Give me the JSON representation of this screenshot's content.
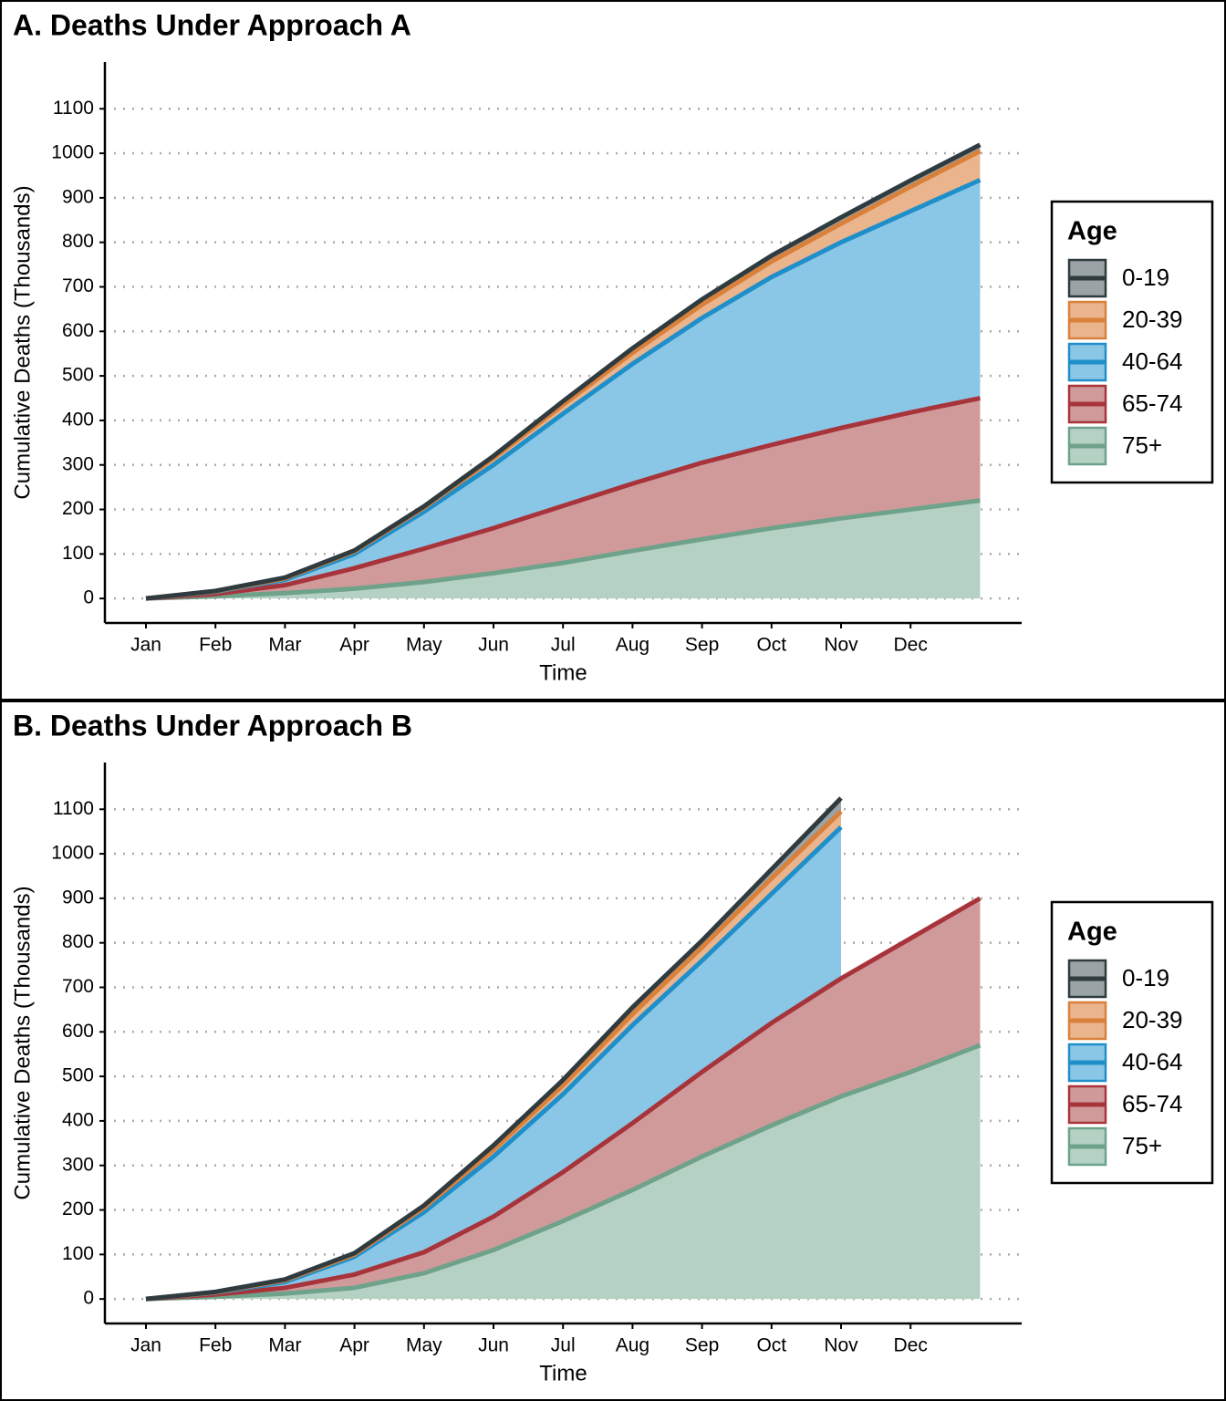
{
  "chart_data": [
    {
      "type": "area",
      "stacked": true,
      "title": "A. Deaths Under Approach A",
      "x_label": "Time",
      "y_label": "Cumulative Deaths (Thousands)",
      "legend_title": "Age",
      "legend": "right",
      "grid": true,
      "categories": [
        "Jan",
        "Feb",
        "Mar",
        "Apr",
        "May",
        "Jun",
        "Jul",
        "Aug",
        "Sep",
        "Oct",
        "Nov",
        "Dec",
        null
      ],
      "ylim": [
        -55,
        1205
      ],
      "yticks": [
        0,
        100,
        200,
        300,
        400,
        500,
        600,
        700,
        800,
        900,
        1000,
        1100
      ],
      "series": [
        {
          "name": "0-19",
          "color": "#2f3b3f",
          "fill": "#9aa3a6",
          "values": [
            0,
            1,
            2,
            2,
            3,
            5,
            8,
            10,
            12,
            13,
            14,
            14,
            14
          ]
        },
        {
          "name": "20-39",
          "color": "#d9803a",
          "fill": "#eab48d",
          "values": [
            0,
            1,
            3,
            6,
            9,
            15,
            20,
            25,
            30,
            35,
            42,
            55,
            65
          ]
        },
        {
          "name": "40-64",
          "color": "#1f8fca",
          "fill": "#8ac6e5",
          "values": [
            0,
            5,
            12,
            32,
            83,
            142,
            207,
            269,
            325,
            377,
            417,
            452,
            490
          ]
        },
        {
          "name": "65-74",
          "color": "#a8343b",
          "fill": "#d09a9b",
          "values": [
            0,
            5,
            18,
            46,
            75,
            101,
            128,
            151,
            172,
            187,
            203,
            218,
            230
          ]
        },
        {
          "name": "75+",
          "color": "#6fa28a",
          "fill": "#b5d1c3",
          "values": [
            0,
            5,
            12,
            22,
            37,
            57,
            80,
            107,
            133,
            158,
            180,
            200,
            220
          ]
        }
      ]
    },
    {
      "type": "area",
      "stacked": true,
      "title": "B. Deaths Under Approach B",
      "x_label": "Time",
      "y_label": "Cumulative Deaths (Thousands)",
      "legend_title": "Age",
      "legend": "right",
      "grid": true,
      "categories": [
        "Jan",
        "Feb",
        "Mar",
        "Apr",
        "May",
        "Jun",
        "Jul",
        "Aug",
        "Sep",
        "Oct",
        "Nov",
        "Dec",
        null
      ],
      "ylim": [
        -55,
        1205
      ],
      "yticks": [
        0,
        100,
        200,
        300,
        400,
        500,
        600,
        700,
        800,
        900,
        1000,
        1100
      ],
      "series": [
        {
          "name": "0-19",
          "color": "#2f3b3f",
          "fill": "#9aa3a6",
          "values": [
            0,
            1,
            2,
            3,
            5,
            10,
            12,
            15,
            15,
            20,
            30,
            null,
            null
          ]
        },
        {
          "name": "20-39",
          "color": "#d9803a",
          "fill": "#eab48d",
          "values": [
            0,
            1,
            4,
            5,
            10,
            15,
            20,
            25,
            30,
            35,
            35,
            null,
            null
          ]
        },
        {
          "name": "40-64",
          "color": "#1f8fca",
          "fill": "#8ac6e5",
          "values": [
            0,
            4,
            13,
            40,
            90,
            135,
            175,
            220,
            250,
            290,
            340,
            null,
            null
          ]
        },
        {
          "name": "65-74",
          "color": "#a8343b",
          "fill": "#d09a9b",
          "values": [
            0,
            5,
            13,
            30,
            47,
            75,
            110,
            150,
            190,
            230,
            265,
            300,
            330
          ]
        },
        {
          "name": "75+",
          "color": "#6fa28a",
          "fill": "#b5d1c3",
          "values": [
            0,
            5,
            12,
            25,
            58,
            110,
            175,
            245,
            320,
            390,
            455,
            510,
            570
          ]
        }
      ]
    }
  ]
}
